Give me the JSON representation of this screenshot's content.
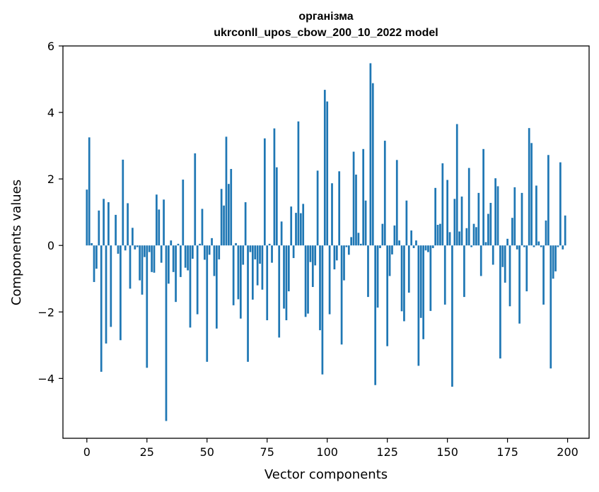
{
  "chart_data": {
    "type": "bar",
    "title": "організма",
    "subtitle": "ukrconll_upos_cbow_200_10_2022 model",
    "xlabel": "Vector components",
    "ylabel": "Components values",
    "xlim": [
      -9.95,
      208.95
    ],
    "ylim": [
      -5.8,
      6.0
    ],
    "xticks": [
      0,
      25,
      50,
      75,
      100,
      125,
      150,
      175,
      200
    ],
    "xtick_labels": [
      "0",
      "25",
      "50",
      "75",
      "100",
      "125",
      "150",
      "175",
      "200"
    ],
    "yticks": [
      -4,
      -2,
      0,
      2,
      4,
      6
    ],
    "ytick_labels": [
      "−4",
      "−2",
      "0",
      "2",
      "4",
      "6"
    ],
    "bar_color": "#1f77b4",
    "grid": false,
    "legend": "none",
    "x": [
      0,
      1,
      2,
      3,
      4,
      5,
      6,
      7,
      8,
      9,
      10,
      11,
      12,
      13,
      14,
      15,
      16,
      17,
      18,
      19,
      20,
      21,
      22,
      23,
      24,
      25,
      26,
      27,
      28,
      29,
      30,
      31,
      32,
      33,
      34,
      35,
      36,
      37,
      38,
      39,
      40,
      41,
      42,
      43,
      44,
      45,
      46,
      47,
      48,
      49,
      50,
      51,
      52,
      53,
      54,
      55,
      56,
      57,
      58,
      59,
      60,
      61,
      62,
      63,
      64,
      65,
      66,
      67,
      68,
      69,
      70,
      71,
      72,
      73,
      74,
      75,
      76,
      77,
      78,
      79,
      80,
      81,
      82,
      83,
      84,
      85,
      86,
      87,
      88,
      89,
      90,
      91,
      92,
      93,
      94,
      95,
      96,
      97,
      98,
      99,
      100,
      101,
      102,
      103,
      104,
      105,
      106,
      107,
      108,
      109,
      110,
      111,
      112,
      113,
      114,
      115,
      116,
      117,
      118,
      119,
      120,
      121,
      122,
      123,
      124,
      125,
      126,
      127,
      128,
      129,
      130,
      131,
      132,
      133,
      134,
      135,
      136,
      137,
      138,
      139,
      140,
      141,
      142,
      143,
      144,
      145,
      146,
      147,
      148,
      149,
      150,
      151,
      152,
      153,
      154,
      155,
      156,
      157,
      158,
      159,
      160,
      161,
      162,
      163,
      164,
      165,
      166,
      167,
      168,
      169,
      170,
      171,
      172,
      173,
      174,
      175,
      176,
      177,
      178,
      179,
      180,
      181,
      182,
      183,
      184,
      185,
      186,
      187,
      188,
      189,
      190,
      191,
      192,
      193,
      194,
      195,
      196,
      197,
      198,
      199
    ],
    "values": [
      1.68,
      3.25,
      0.07,
      -1.1,
      -0.7,
      1.05,
      -3.8,
      1.4,
      -2.95,
      1.3,
      -2.45,
      0.0,
      0.92,
      -0.25,
      -2.85,
      2.58,
      -0.15,
      1.27,
      -1.3,
      0.53,
      -0.12,
      -0.05,
      -1.05,
      -1.48,
      -0.35,
      -3.68,
      -0.2,
      -0.8,
      -0.82,
      1.53,
      1.08,
      -0.52,
      1.38,
      -5.28,
      -1.15,
      0.15,
      -0.8,
      -1.7,
      0.05,
      -0.95,
      1.98,
      -0.67,
      -0.75,
      -2.47,
      -0.4,
      2.77,
      -2.07,
      0.05,
      1.1,
      -0.43,
      -3.5,
      -0.28,
      0.22,
      -0.92,
      -2.5,
      -0.42,
      1.7,
      1.2,
      3.27,
      1.85,
      2.3,
      -1.8,
      0.07,
      -1.62,
      -2.2,
      -0.58,
      1.3,
      -3.5,
      -0.2,
      -1.63,
      -0.42,
      -1.2,
      -0.55,
      -1.33,
      3.22,
      -2.25,
      0.05,
      -0.52,
      3.52,
      2.35,
      -2.77,
      0.72,
      -1.9,
      -2.25,
      -1.38,
      1.17,
      -0.38,
      0.98,
      3.73,
      0.97,
      1.25,
      -2.15,
      -2.05,
      -0.5,
      -1.25,
      -0.6,
      2.25,
      -2.55,
      -3.88,
      4.68,
      4.33,
      -2.07,
      1.87,
      -0.72,
      -0.45,
      2.23,
      -2.98,
      -1.05,
      -0.05,
      -0.28,
      0.25,
      2.82,
      2.13,
      0.38,
      0.05,
      2.9,
      1.35,
      -1.55,
      5.48,
      4.88,
      -4.2,
      -1.87,
      -0.08,
      0.65,
      3.15,
      -3.03,
      -0.92,
      -0.27,
      0.6,
      2.57,
      0.15,
      -1.98,
      -2.28,
      1.35,
      -1.42,
      0.45,
      -0.08,
      0.15,
      -3.62,
      -2.18,
      -2.82,
      -0.15,
      -0.2,
      -1.97,
      -0.08,
      1.73,
      0.62,
      0.65,
      2.47,
      -1.78,
      1.97,
      0.4,
      -4.25,
      1.4,
      3.65,
      0.42,
      1.47,
      -1.55,
      0.52,
      2.33,
      -0.05,
      0.65,
      0.55,
      1.58,
      -0.92,
      2.9,
      0.1,
      0.95,
      1.28,
      -0.58,
      2.02,
      1.78,
      -3.4,
      -0.65,
      -1.12,
      0.2,
      -1.83,
      0.83,
      1.75,
      -0.12,
      -2.35,
      1.58,
      -0.05,
      -1.38,
      3.53,
      3.08,
      -0.05,
      1.8,
      0.12,
      -0.05,
      -1.78,
      0.75,
      2.72,
      -3.7,
      -1.0,
      -0.78,
      -0.05,
      2.5,
      -0.12,
      0.9
    ]
  }
}
